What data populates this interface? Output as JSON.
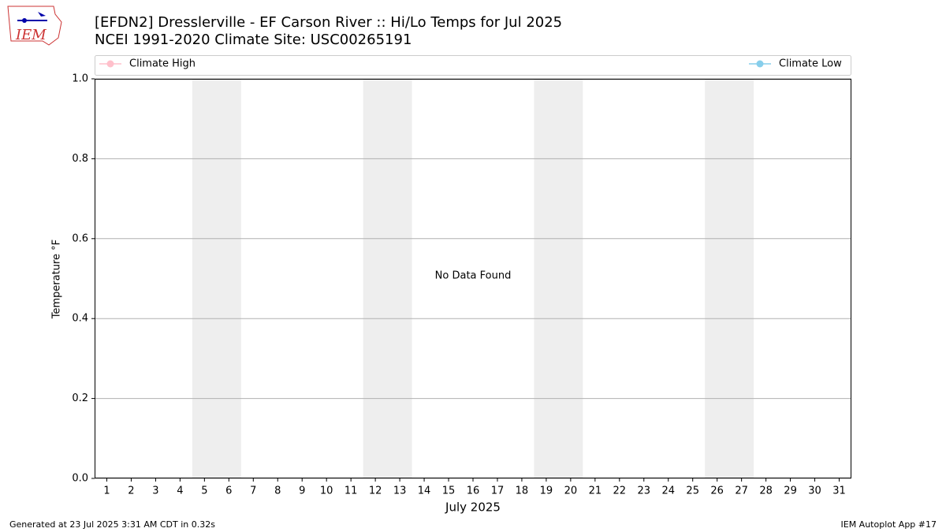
{
  "logo_text": "IEM",
  "chart_data": {
    "type": "line",
    "title": "[EFDN2] Dresslerville - EF Carson River :: Hi/Lo Temps for Jul 2025",
    "subtitle": "NCEI 1991-2020 Climate Site: USC00265191",
    "x_label": "July 2025",
    "y_label": "Temperature °F",
    "annotation": "No Data Found",
    "x": [
      1,
      2,
      3,
      4,
      5,
      6,
      7,
      8,
      9,
      10,
      11,
      12,
      13,
      14,
      15,
      16,
      17,
      18,
      19,
      20,
      21,
      22,
      23,
      24,
      25,
      26,
      27,
      28,
      29,
      30,
      31
    ],
    "series": [
      {
        "name": "Climate High",
        "color": "#ffc0cb",
        "values": [
          null,
          null,
          null,
          null,
          null,
          null,
          null,
          null,
          null,
          null,
          null,
          null,
          null,
          null,
          null,
          null,
          null,
          null,
          null,
          null,
          null,
          null,
          null,
          null,
          null,
          null,
          null,
          null,
          null,
          null,
          null
        ]
      },
      {
        "name": "Climate Low",
        "color": "#87ceeb",
        "values": [
          null,
          null,
          null,
          null,
          null,
          null,
          null,
          null,
          null,
          null,
          null,
          null,
          null,
          null,
          null,
          null,
          null,
          null,
          null,
          null,
          null,
          null,
          null,
          null,
          null,
          null,
          null,
          null,
          null,
          null,
          null
        ]
      }
    ],
    "xlim": [
      0.5,
      31.5
    ],
    "xticks": [
      1,
      2,
      3,
      4,
      5,
      6,
      7,
      8,
      9,
      10,
      11,
      12,
      13,
      14,
      15,
      16,
      17,
      18,
      19,
      20,
      21,
      22,
      23,
      24,
      25,
      26,
      27,
      28,
      29,
      30,
      31
    ],
    "ylim": [
      0,
      1
    ],
    "yticks": [
      {
        "value": 0,
        "label": "0.0"
      },
      {
        "value": 0.2,
        "label": "0.2"
      },
      {
        "value": 0.4,
        "label": "0.4"
      },
      {
        "value": 0.6,
        "label": "0.6"
      },
      {
        "value": 0.8,
        "label": "0.8"
      },
      {
        "value": 1,
        "label": "1.0"
      }
    ],
    "shaded_days": [
      [
        5,
        6
      ],
      [
        12,
        13
      ],
      [
        19,
        20
      ],
      [
        26,
        27
      ]
    ],
    "shade_color": "#eeeeee",
    "grid": true,
    "footer_left": "Generated at 23 Jul 2025 3:31 AM CDT in 0.32s",
    "footer_right": "IEM Autoplot App #17"
  }
}
